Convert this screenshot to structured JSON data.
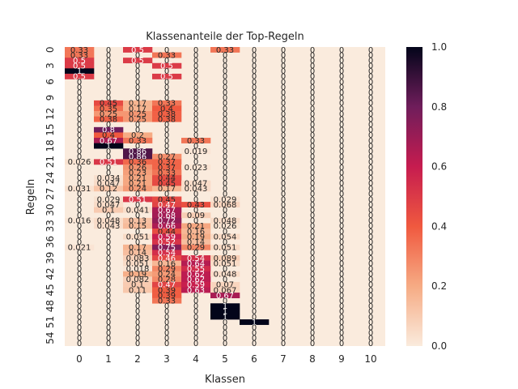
{
  "chart_data": {
    "type": "heatmap",
    "title": "Klassenanteile der Top-Regeln",
    "xlabel": "Klassen",
    "ylabel": "Regeln",
    "x_categories": [
      "0",
      "1",
      "2",
      "3",
      "4",
      "5",
      "6",
      "7",
      "8",
      "9",
      "10"
    ],
    "y_tick_labels": [
      "0",
      "3",
      "6",
      "9",
      "12",
      "15",
      "18",
      "21",
      "24",
      "27",
      "30",
      "33",
      "36",
      "39",
      "42",
      "45",
      "48",
      "51",
      "54"
    ],
    "y_tick_rows": [
      0,
      3,
      6,
      9,
      12,
      15,
      18,
      21,
      24,
      27,
      30,
      33,
      36,
      39,
      42,
      45,
      48,
      51,
      54
    ],
    "n_rows": 56,
    "colorbar": {
      "min": 0,
      "max": 1,
      "ticks": [
        "0.0",
        "0.2",
        "0.4",
        "0.6",
        "0.8",
        "1.0"
      ]
    },
    "colors": {
      "low": "#faebdd",
      "high": "#03051a"
    },
    "cells": [
      {
        "row": 0,
        "col": 0,
        "value": 0.33,
        "label": "0.33"
      },
      {
        "row": 0,
        "col": 2,
        "value": 0.5,
        "label": "0.5"
      },
      {
        "row": 0,
        "col": 5,
        "value": 0.33,
        "label": "0.33"
      },
      {
        "row": 1,
        "col": 0,
        "value": 0.33,
        "label": "0.33"
      },
      {
        "row": 1,
        "col": 3,
        "value": 0.33,
        "label": "0.33"
      },
      {
        "row": 2,
        "col": 0,
        "value": 0.5,
        "label": "0.5"
      },
      {
        "row": 2,
        "col": 2,
        "value": 0.5,
        "label": "0.5"
      },
      {
        "row": 3,
        "col": 0,
        "value": 0.5,
        "label": "0.5"
      },
      {
        "row": 3,
        "col": 3,
        "value": 0.5,
        "label": "0.5"
      },
      {
        "row": 4,
        "col": 0,
        "value": 1.0,
        "label": "1"
      },
      {
        "row": 5,
        "col": 0,
        "value": 0.5,
        "label": "0.5"
      },
      {
        "row": 5,
        "col": 3,
        "value": 0.5,
        "label": "0.5"
      },
      {
        "row": 10,
        "col": 1,
        "value": 0.45,
        "label": "0.45"
      },
      {
        "row": 10,
        "col": 2,
        "value": 0.17,
        "label": "0.17"
      },
      {
        "row": 10,
        "col": 3,
        "value": 0.33,
        "label": "0.33"
      },
      {
        "row": 11,
        "col": 1,
        "value": 0.35,
        "label": "0.35"
      },
      {
        "row": 11,
        "col": 2,
        "value": 0.17,
        "label": "0.17"
      },
      {
        "row": 11,
        "col": 3,
        "value": 0.4,
        "label": "0.4"
      },
      {
        "row": 12,
        "col": 1,
        "value": 0.25,
        "label": "0.25"
      },
      {
        "row": 12,
        "col": 2,
        "value": 0.25,
        "label": "0.25"
      },
      {
        "row": 12,
        "col": 3,
        "value": 0.38,
        "label": "0.38"
      },
      {
        "row": 13,
        "col": 1,
        "value": 0.38,
        "label": "0.38"
      },
      {
        "row": 13,
        "col": 2,
        "value": 0.25,
        "label": "0.25"
      },
      {
        "row": 13,
        "col": 3,
        "value": 0.38,
        "label": "0.38"
      },
      {
        "row": 15,
        "col": 1,
        "value": 0.8,
        "label": "0.8"
      },
      {
        "row": 16,
        "col": 1,
        "value": 0.4,
        "label": "0.4"
      },
      {
        "row": 16,
        "col": 2,
        "value": 0.2,
        "label": "0.2"
      },
      {
        "row": 17,
        "col": 1,
        "value": 0.67,
        "label": "0.67"
      },
      {
        "row": 17,
        "col": 2,
        "value": 0.33,
        "label": "0.33"
      },
      {
        "row": 17,
        "col": 4,
        "value": 0.33,
        "label": "0.33"
      },
      {
        "row": 18,
        "col": 1,
        "value": 1.0,
        "label": "1"
      },
      {
        "row": 19,
        "col": 2,
        "value": 0.86,
        "label": "0.86"
      },
      {
        "row": 19,
        "col": 4,
        "value": 0.019,
        "label": "0.019"
      },
      {
        "row": 20,
        "col": 2,
        "value": 0.86,
        "label": "0.86"
      },
      {
        "row": 20,
        "col": 3,
        "value": 0.27,
        "label": "0.27"
      },
      {
        "row": 21,
        "col": 0,
        "value": 0.026,
        "label": "0.026"
      },
      {
        "row": 21,
        "col": 1,
        "value": 0.51,
        "label": "0.51"
      },
      {
        "row": 21,
        "col": 2,
        "value": 0.36,
        "label": "0.36"
      },
      {
        "row": 21,
        "col": 3,
        "value": 0.37,
        "label": "0.37"
      },
      {
        "row": 22,
        "col": 2,
        "value": 0.26,
        "label": "0.26"
      },
      {
        "row": 22,
        "col": 3,
        "value": 0.37,
        "label": "0.37"
      },
      {
        "row": 22,
        "col": 4,
        "value": 0.023,
        "label": "0.023"
      },
      {
        "row": 23,
        "col": 2,
        "value": 0.23,
        "label": "0.23"
      },
      {
        "row": 23,
        "col": 3,
        "value": 0.33,
        "label": "0.33"
      },
      {
        "row": 24,
        "col": 1,
        "value": 0.034,
        "label": "0.034"
      },
      {
        "row": 24,
        "col": 2,
        "value": 0.21,
        "label": "0.21"
      },
      {
        "row": 24,
        "col": 3,
        "value": 0.44,
        "label": "0.44"
      },
      {
        "row": 25,
        "col": 1,
        "value": 0.047,
        "label": "0.047"
      },
      {
        "row": 25,
        "col": 2,
        "value": 0.21,
        "label": "0.21"
      },
      {
        "row": 25,
        "col": 3,
        "value": 0.45,
        "label": "0.45"
      },
      {
        "row": 25,
        "col": 4,
        "value": 0.047,
        "label": "0.047"
      },
      {
        "row": 26,
        "col": 0,
        "value": 0.031,
        "label": "0.031"
      },
      {
        "row": 26,
        "col": 1,
        "value": 0.12,
        "label": "0.12"
      },
      {
        "row": 26,
        "col": 2,
        "value": 0.24,
        "label": "0.24"
      },
      {
        "row": 26,
        "col": 3,
        "value": 0.17,
        "label": "0.17"
      },
      {
        "row": 26,
        "col": 4,
        "value": 0.043,
        "label": "0.043"
      },
      {
        "row": 28,
        "col": 1,
        "value": 0.029,
        "label": "0.029"
      },
      {
        "row": 28,
        "col": 2,
        "value": 0.51,
        "label": "0.51"
      },
      {
        "row": 28,
        "col": 3,
        "value": 0.45,
        "label": "0.45"
      },
      {
        "row": 28,
        "col": 5,
        "value": 0.029,
        "label": "0.029"
      },
      {
        "row": 29,
        "col": 1,
        "value": 0.047,
        "label": "0.047"
      },
      {
        "row": 29,
        "col": 3,
        "value": 0.47,
        "label": "0.47"
      },
      {
        "row": 29,
        "col": 4,
        "value": 0.43,
        "label": "0.43"
      },
      {
        "row": 29,
        "col": 5,
        "value": 0.068,
        "label": "0.068"
      },
      {
        "row": 30,
        "col": 1,
        "value": 0.1,
        "label": "0.1"
      },
      {
        "row": 30,
        "col": 2,
        "value": 0.041,
        "label": "0.041"
      },
      {
        "row": 30,
        "col": 3,
        "value": 0.67,
        "label": "0.67"
      },
      {
        "row": 31,
        "col": 3,
        "value": 0.68,
        "label": "0.68"
      },
      {
        "row": 31,
        "col": 4,
        "value": 0.09,
        "label": "0.09"
      },
      {
        "row": 32,
        "col": 0,
        "value": 0.016,
        "label": "0.016"
      },
      {
        "row": 32,
        "col": 1,
        "value": 0.048,
        "label": "0.048"
      },
      {
        "row": 32,
        "col": 2,
        "value": 0.13,
        "label": "0.13"
      },
      {
        "row": 32,
        "col": 3,
        "value": 0.72,
        "label": "0.72"
      },
      {
        "row": 32,
        "col": 5,
        "value": 0.048,
        "label": "0.048"
      },
      {
        "row": 33,
        "col": 1,
        "value": 0.043,
        "label": "0.043"
      },
      {
        "row": 33,
        "col": 2,
        "value": 0.15,
        "label": "0.15"
      },
      {
        "row": 33,
        "col": 3,
        "value": 0.66,
        "label": "0.66"
      },
      {
        "row": 33,
        "col": 4,
        "value": 0.21,
        "label": "0.21"
      },
      {
        "row": 33,
        "col": 5,
        "value": 0.026,
        "label": "0.026"
      },
      {
        "row": 34,
        "col": 3,
        "value": 0.44,
        "label": "0.44"
      },
      {
        "row": 34,
        "col": 4,
        "value": 0.16,
        "label": "0.16"
      },
      {
        "row": 35,
        "col": 2,
        "value": 0.051,
        "label": "0.051"
      },
      {
        "row": 35,
        "col": 3,
        "value": 0.59,
        "label": "0.59"
      },
      {
        "row": 35,
        "col": 4,
        "value": 0.19,
        "label": "0.19"
      },
      {
        "row": 35,
        "col": 5,
        "value": 0.054,
        "label": "0.054"
      },
      {
        "row": 36,
        "col": 3,
        "value": 0.52,
        "label": "0.52"
      },
      {
        "row": 36,
        "col": 4,
        "value": 0.14,
        "label": "0.14"
      },
      {
        "row": 37,
        "col": 0,
        "value": 0.021,
        "label": "0.021"
      },
      {
        "row": 37,
        "col": 2,
        "value": 0.17,
        "label": "0.17"
      },
      {
        "row": 37,
        "col": 3,
        "value": 0.75,
        "label": "0.75"
      },
      {
        "row": 37,
        "col": 4,
        "value": 0.29,
        "label": "0.29"
      },
      {
        "row": 37,
        "col": 5,
        "value": 0.051,
        "label": "0.051"
      },
      {
        "row": 38,
        "col": 2,
        "value": 0.14,
        "label": "0.14"
      },
      {
        "row": 38,
        "col": 3,
        "value": 0.54,
        "label": "0.54"
      },
      {
        "row": 39,
        "col": 2,
        "value": 0.083,
        "label": "0.083"
      },
      {
        "row": 39,
        "col": 3,
        "value": 0.46,
        "label": "0.46"
      },
      {
        "row": 39,
        "col": 4,
        "value": 0.54,
        "label": "0.54"
      },
      {
        "row": 39,
        "col": 5,
        "value": 0.089,
        "label": "0.089"
      },
      {
        "row": 40,
        "col": 2,
        "value": 0.051,
        "label": "0.051"
      },
      {
        "row": 40,
        "col": 3,
        "value": 0.16,
        "label": "0.16"
      },
      {
        "row": 40,
        "col": 4,
        "value": 0.64,
        "label": "0.64"
      },
      {
        "row": 40,
        "col": 5,
        "value": 0.051,
        "label": "0.051"
      },
      {
        "row": 41,
        "col": 2,
        "value": 0.018,
        "label": "0.018"
      },
      {
        "row": 41,
        "col": 3,
        "value": 0.29,
        "label": "0.29"
      },
      {
        "row": 41,
        "col": 4,
        "value": 0.55,
        "label": "0.55"
      },
      {
        "row": 42,
        "col": 2,
        "value": 0.19,
        "label": "0.19"
      },
      {
        "row": 42,
        "col": 3,
        "value": 0.24,
        "label": "0.24"
      },
      {
        "row": 42,
        "col": 4,
        "value": 0.62,
        "label": "0.62"
      },
      {
        "row": 42,
        "col": 5,
        "value": 0.048,
        "label": "0.048"
      },
      {
        "row": 43,
        "col": 2,
        "value": 0.082,
        "label": "0.082"
      },
      {
        "row": 43,
        "col": 3,
        "value": 0.28,
        "label": "0.28"
      },
      {
        "row": 43,
        "col": 4,
        "value": 0.62,
        "label": "0.62"
      },
      {
        "row": 44,
        "col": 2,
        "value": 0.1,
        "label": "0.1"
      },
      {
        "row": 44,
        "col": 3,
        "value": 0.47,
        "label": "0.47"
      },
      {
        "row": 44,
        "col": 4,
        "value": 0.59,
        "label": "0.59"
      },
      {
        "row": 44,
        "col": 5,
        "value": 0.07,
        "label": "0.07"
      },
      {
        "row": 45,
        "col": 2,
        "value": 0.11,
        "label": "0.11"
      },
      {
        "row": 45,
        "col": 3,
        "value": 0.39,
        "label": "0.39"
      },
      {
        "row": 45,
        "col": 4,
        "value": 0.63,
        "label": "0.63"
      },
      {
        "row": 45,
        "col": 5,
        "value": 0.067,
        "label": "0.067"
      },
      {
        "row": 46,
        "col": 3,
        "value": 0.39,
        "label": "0.39"
      },
      {
        "row": 46,
        "col": 5,
        "value": 0.67,
        "label": "0.67"
      },
      {
        "row": 47,
        "col": 3,
        "value": 0.33,
        "label": "0.33"
      },
      {
        "row": 48,
        "col": 5,
        "value": 1.0,
        "label": "1"
      },
      {
        "row": 49,
        "col": 5,
        "value": 1.0,
        "label": "1"
      },
      {
        "row": 50,
        "col": 5,
        "value": 1.0,
        "label": "1"
      },
      {
        "row": 51,
        "col": 6,
        "value": 1.0,
        "label": "1"
      }
    ]
  }
}
